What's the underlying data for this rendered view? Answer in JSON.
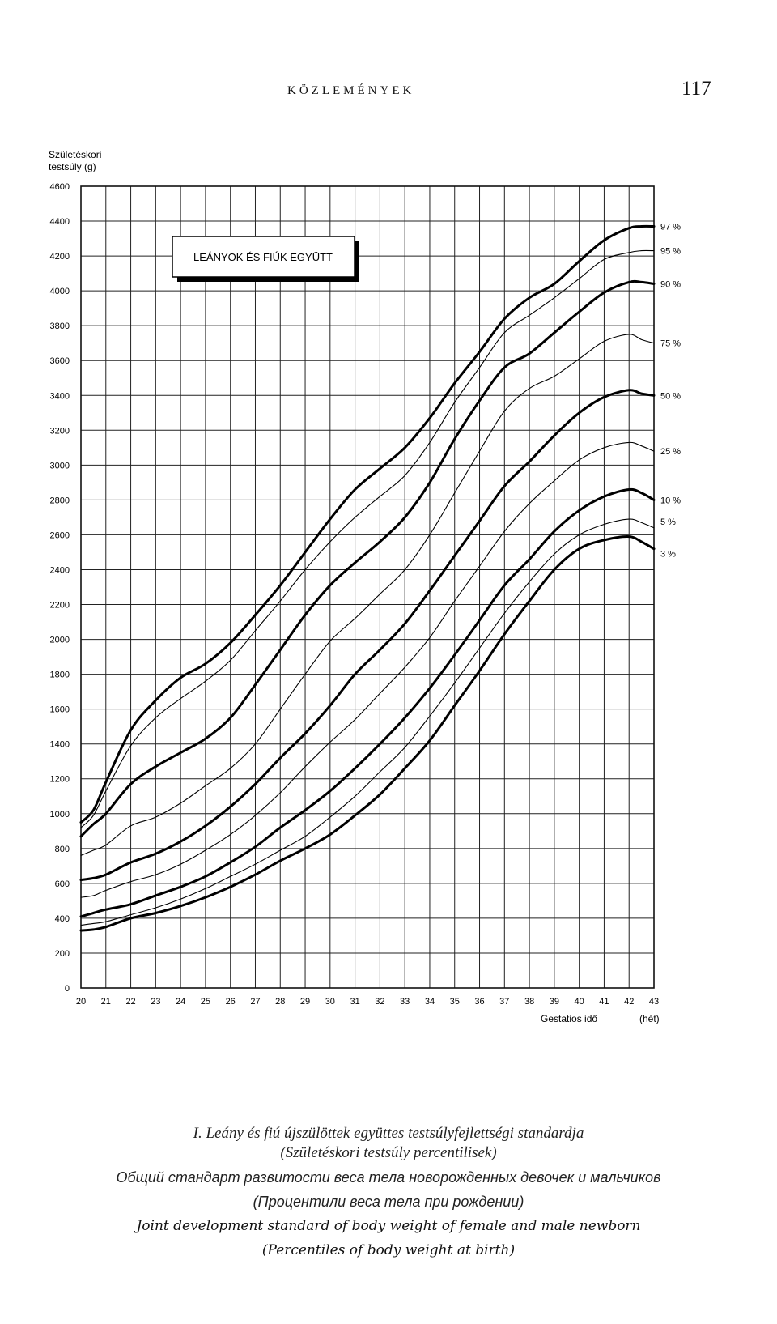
{
  "page": {
    "journal_title": "KÖZLEMÉNYEK",
    "page_number": "117"
  },
  "chart_data": {
    "type": "line",
    "title": "",
    "legend_box": "LEÁNYOK ÉS FIÚK EGYÜTT",
    "ylabel_line1": "Születéskori",
    "ylabel_line2": "testsúly (g)",
    "xlabel": "Gestatios idő",
    "xunit": "(hét)",
    "ylim": [
      0,
      4600
    ],
    "xlim": [
      20,
      43
    ],
    "yticks": [
      0,
      200,
      400,
      600,
      800,
      1000,
      1200,
      1400,
      1600,
      1800,
      2000,
      2200,
      2400,
      2600,
      2800,
      3000,
      3200,
      3400,
      3600,
      3800,
      4000,
      4200,
      4400,
      4600
    ],
    "xticks": [
      20,
      21,
      22,
      23,
      24,
      25,
      26,
      27,
      28,
      29,
      30,
      31,
      32,
      33,
      34,
      35,
      36,
      37,
      38,
      39,
      40,
      41,
      42,
      43
    ],
    "grid": true,
    "x": [
      20,
      20.5,
      21,
      22,
      23,
      24,
      25,
      26,
      27,
      28,
      29,
      30,
      31,
      32,
      33,
      34,
      35,
      36,
      37,
      38,
      39,
      40,
      41,
      42,
      42.5,
      43
    ],
    "series": [
      {
        "name": "97 %",
        "style": "bold",
        "values": [
          950,
          1020,
          1180,
          1480,
          1650,
          1780,
          1860,
          1980,
          2140,
          2310,
          2500,
          2690,
          2860,
          2980,
          3100,
          3270,
          3470,
          3650,
          3840,
          3960,
          4040,
          4170,
          4290,
          4360,
          4370,
          4370
        ]
      },
      {
        "name": "95 %",
        "style": "thin",
        "values": [
          920,
          990,
          1130,
          1390,
          1550,
          1660,
          1760,
          1880,
          2050,
          2220,
          2400,
          2560,
          2700,
          2820,
          2940,
          3130,
          3360,
          3560,
          3760,
          3860,
          3960,
          4070,
          4180,
          4220,
          4230,
          4230
        ]
      },
      {
        "name": "90 %",
        "style": "bold",
        "values": [
          870,
          940,
          1000,
          1170,
          1270,
          1350,
          1430,
          1550,
          1740,
          1940,
          2140,
          2310,
          2440,
          2560,
          2700,
          2900,
          3150,
          3370,
          3560,
          3640,
          3760,
          3880,
          3990,
          4050,
          4050,
          4040
        ]
      },
      {
        "name": "75 %",
        "style": "thin",
        "values": [
          760,
          790,
          820,
          930,
          980,
          1060,
          1160,
          1260,
          1400,
          1600,
          1800,
          1990,
          2120,
          2260,
          2400,
          2600,
          2840,
          3080,
          3310,
          3440,
          3510,
          3610,
          3710,
          3750,
          3720,
          3700
        ]
      },
      {
        "name": "50 %",
        "style": "bold",
        "values": [
          620,
          630,
          650,
          720,
          770,
          840,
          930,
          1040,
          1170,
          1320,
          1460,
          1620,
          1800,
          1940,
          2090,
          2280,
          2480,
          2680,
          2880,
          3020,
          3170,
          3300,
          3390,
          3430,
          3410,
          3400
        ]
      },
      {
        "name": "25 %",
        "style": "thin",
        "values": [
          520,
          530,
          560,
          610,
          650,
          710,
          790,
          880,
          990,
          1120,
          1270,
          1410,
          1540,
          1690,
          1840,
          2010,
          2220,
          2420,
          2620,
          2780,
          2910,
          3030,
          3100,
          3130,
          3110,
          3080
        ]
      },
      {
        "name": "10 %",
        "style": "bold",
        "values": [
          410,
          430,
          450,
          480,
          530,
          580,
          640,
          720,
          810,
          920,
          1020,
          1130,
          1260,
          1400,
          1550,
          1720,
          1910,
          2110,
          2310,
          2460,
          2620,
          2740,
          2820,
          2860,
          2840,
          2800
        ]
      },
      {
        "name": "5 %",
        "style": "thin",
        "values": [
          360,
          370,
          380,
          420,
          460,
          510,
          570,
          640,
          710,
          790,
          870,
          980,
          1100,
          1240,
          1380,
          1560,
          1750,
          1950,
          2150,
          2330,
          2490,
          2600,
          2660,
          2690,
          2670,
          2640
        ]
      },
      {
        "name": "3 %",
        "style": "bold",
        "values": [
          330,
          335,
          350,
          400,
          430,
          470,
          520,
          580,
          650,
          730,
          800,
          880,
          990,
          1110,
          1260,
          1420,
          1620,
          1820,
          2030,
          2220,
          2400,
          2520,
          2570,
          2590,
          2560,
          2520
        ]
      }
    ]
  },
  "captions": {
    "hungarian_line1": "I. Leány és fiú újszülöttek együttes testsúlyfejlettségi standardja",
    "hungarian_line2": "(Születéskori testsúly percentilisek)",
    "russian_line1": "Общий стандарт развитости веса тела новорожденных девочек и мальчиков",
    "russian_line2": "(Процентили веса тела при рождении)",
    "english_line1": "Joint development standard of body weight of female and male newborn",
    "english_line2": "(Percentiles of body weight at birth)"
  }
}
